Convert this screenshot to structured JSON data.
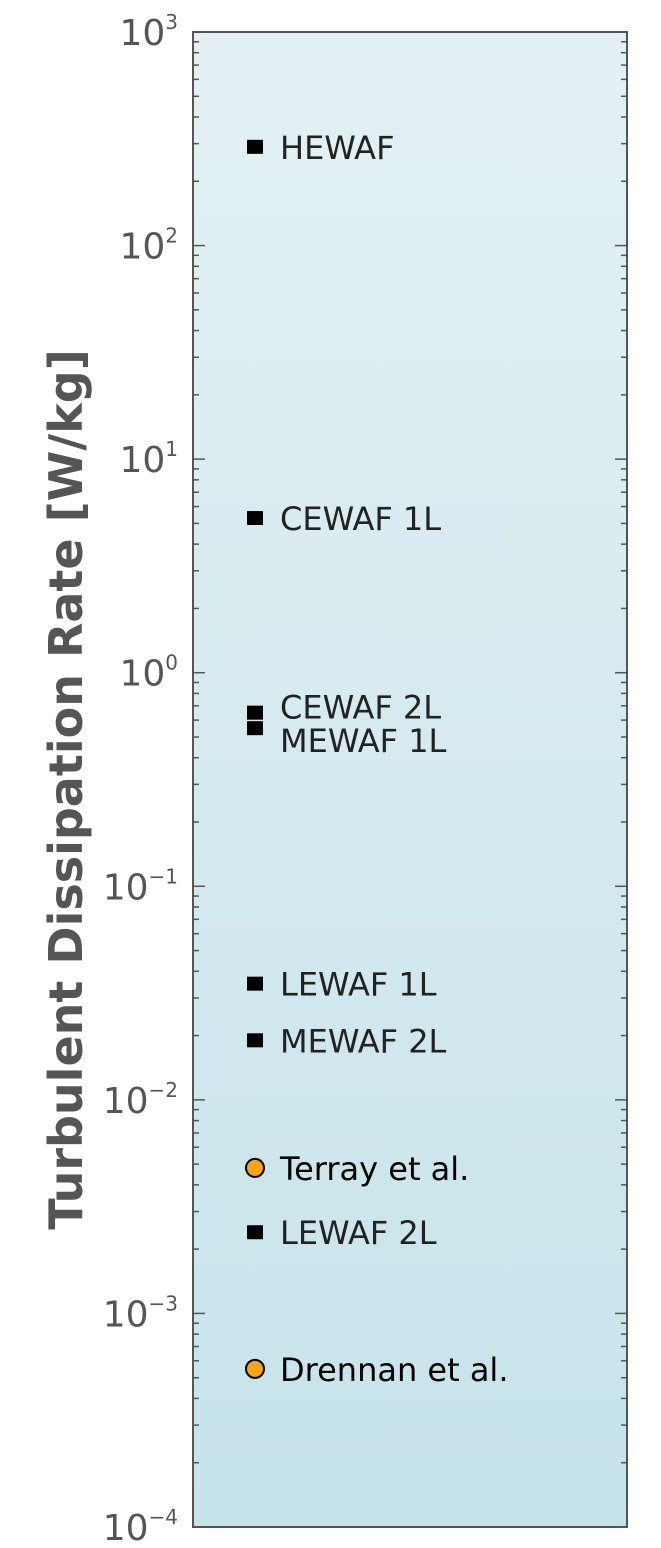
{
  "chart_data": {
    "type": "scatter",
    "title": "",
    "xlabel": "",
    "ylabel": "Turbulent Dissipation Rate [W/kg]",
    "yscale": "log",
    "ylim": [
      0.0001,
      1000
    ],
    "grid": false,
    "legend": "none",
    "y_ticks": [
      {
        "base": "10",
        "exp": "3"
      },
      {
        "base": "10",
        "exp": "2"
      },
      {
        "base": "10",
        "exp": "1"
      },
      {
        "base": "10",
        "exp": "0"
      },
      {
        "base": "10",
        "exp": "−1"
      },
      {
        "base": "10",
        "exp": "−2"
      },
      {
        "base": "10",
        "exp": "−3"
      },
      {
        "base": "10",
        "exp": "−4"
      }
    ],
    "points": [
      {
        "label": "HEWAF",
        "y": 290,
        "marker": "square"
      },
      {
        "label": "CEWAF 1L",
        "y": 5.3,
        "marker": "square"
      },
      {
        "label": "CEWAF 2L",
        "y": 0.65,
        "marker": "square"
      },
      {
        "label": "MEWAF 1L",
        "y": 0.55,
        "marker": "square"
      },
      {
        "label": "LEWAF 1L",
        "y": 0.035,
        "marker": "square"
      },
      {
        "label": "MEWAF 2L",
        "y": 0.019,
        "marker": "square"
      },
      {
        "label": "Terray et al.",
        "y": 0.0048,
        "marker": "circle"
      },
      {
        "label": "LEWAF 2L",
        "y": 0.0024,
        "marker": "square"
      },
      {
        "label": "Drennan et al.",
        "y": 0.00055,
        "marker": "circle"
      }
    ],
    "colors": {
      "plot_bg_top": "#e4f1f4",
      "plot_bg_bottom": "#c6e3ea",
      "square_marker": "#000000",
      "circle_marker": "#f7a31c",
      "axis": "#555555"
    }
  }
}
